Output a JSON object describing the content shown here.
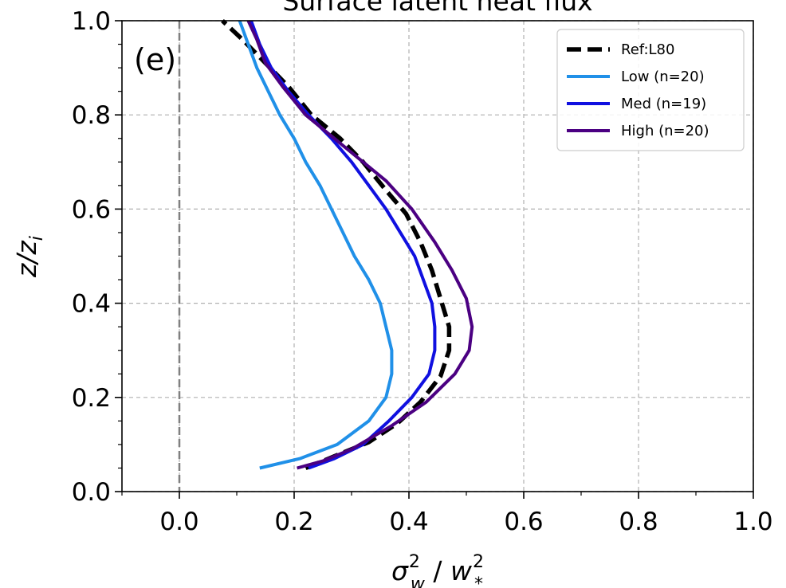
{
  "chart_data": {
    "type": "line",
    "title": "Surface latent heat flux",
    "panel_label": "(e)",
    "xlabel_base": "σ",
    "xlabel_sub1": "w",
    "xlabel_sup1": "2",
    "xlabel_sep": " / ",
    "xlabel_base2": "w",
    "xlabel_sub2": "*",
    "xlabel_sup2": "2",
    "ylabel_base": "z/z",
    "ylabel_sub": "i",
    "xlim": [
      -0.1,
      1.0
    ],
    "ylim": [
      0.0,
      1.0
    ],
    "xticks": [
      0.0,
      0.2,
      0.4,
      0.6,
      0.8,
      1.0
    ],
    "xtick_labels": [
      "0.0",
      "0.2",
      "0.4",
      "0.6",
      "0.8",
      "1.0"
    ],
    "yticks": [
      0.0,
      0.2,
      0.4,
      0.6,
      0.8,
      1.0
    ],
    "ytick_labels": [
      "0.0",
      "0.2",
      "0.4",
      "0.6",
      "0.8",
      "1.0"
    ],
    "grid": true,
    "vline_x": 0.0,
    "legend_position": "top-right",
    "series": [
      {
        "name": "Ref:L80",
        "color": "#000000",
        "dashed": true,
        "points": [
          [
            0.22,
            0.05
          ],
          [
            0.27,
            0.075
          ],
          [
            0.33,
            0.105
          ],
          [
            0.38,
            0.145
          ],
          [
            0.42,
            0.19
          ],
          [
            0.455,
            0.245
          ],
          [
            0.47,
            0.3
          ],
          [
            0.47,
            0.35
          ],
          [
            0.455,
            0.41
          ],
          [
            0.44,
            0.47
          ],
          [
            0.42,
            0.53
          ],
          [
            0.395,
            0.59
          ],
          [
            0.36,
            0.64
          ],
          [
            0.32,
            0.7
          ],
          [
            0.28,
            0.75
          ],
          [
            0.23,
            0.8
          ],
          [
            0.19,
            0.86
          ],
          [
            0.15,
            0.91
          ],
          [
            0.11,
            0.96
          ],
          [
            0.075,
            1.0
          ]
        ]
      },
      {
        "name": "Low (n=20)",
        "color": "#2090e8",
        "dashed": false,
        "points": [
          [
            0.14,
            0.05
          ],
          [
            0.21,
            0.07
          ],
          [
            0.275,
            0.1
          ],
          [
            0.33,
            0.15
          ],
          [
            0.36,
            0.2
          ],
          [
            0.37,
            0.25
          ],
          [
            0.37,
            0.3
          ],
          [
            0.36,
            0.35
          ],
          [
            0.35,
            0.4
          ],
          [
            0.33,
            0.45
          ],
          [
            0.305,
            0.5
          ],
          [
            0.285,
            0.55
          ],
          [
            0.265,
            0.6
          ],
          [
            0.245,
            0.65
          ],
          [
            0.22,
            0.7
          ],
          [
            0.2,
            0.75
          ],
          [
            0.175,
            0.8
          ],
          [
            0.155,
            0.85
          ],
          [
            0.135,
            0.9
          ],
          [
            0.12,
            0.95
          ],
          [
            0.105,
            1.0
          ]
        ]
      },
      {
        "name": "Med (n=19)",
        "color": "#1010e0",
        "dashed": false,
        "points": [
          [
            0.225,
            0.05
          ],
          [
            0.27,
            0.07
          ],
          [
            0.32,
            0.1
          ],
          [
            0.365,
            0.15
          ],
          [
            0.405,
            0.2
          ],
          [
            0.435,
            0.25
          ],
          [
            0.445,
            0.3
          ],
          [
            0.445,
            0.35
          ],
          [
            0.44,
            0.4
          ],
          [
            0.425,
            0.45
          ],
          [
            0.41,
            0.5
          ],
          [
            0.385,
            0.55
          ],
          [
            0.36,
            0.6
          ],
          [
            0.33,
            0.65
          ],
          [
            0.3,
            0.7
          ],
          [
            0.265,
            0.75
          ],
          [
            0.225,
            0.8
          ],
          [
            0.19,
            0.85
          ],
          [
            0.16,
            0.9
          ],
          [
            0.14,
            0.95
          ],
          [
            0.125,
            1.0
          ]
        ]
      },
      {
        "name": "High (n=20)",
        "color": "#4b0082",
        "dashed": false,
        "points": [
          [
            0.205,
            0.05
          ],
          [
            0.25,
            0.065
          ],
          [
            0.3,
            0.09
          ],
          [
            0.37,
            0.14
          ],
          [
            0.43,
            0.19
          ],
          [
            0.48,
            0.25
          ],
          [
            0.505,
            0.3
          ],
          [
            0.51,
            0.35
          ],
          [
            0.5,
            0.41
          ],
          [
            0.475,
            0.47
          ],
          [
            0.445,
            0.53
          ],
          [
            0.405,
            0.6
          ],
          [
            0.36,
            0.66
          ],
          [
            0.32,
            0.7
          ],
          [
            0.27,
            0.75
          ],
          [
            0.22,
            0.8
          ],
          [
            0.18,
            0.86
          ],
          [
            0.15,
            0.91
          ],
          [
            0.135,
            0.96
          ],
          [
            0.12,
            1.0
          ]
        ]
      }
    ]
  }
}
